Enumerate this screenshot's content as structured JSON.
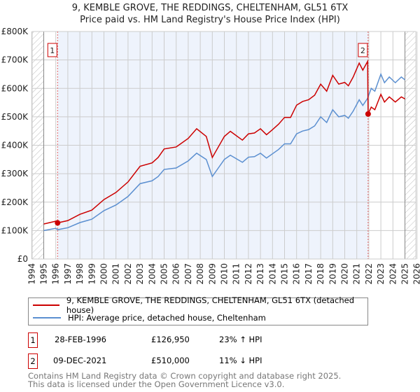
{
  "title": "9, KEMBLE GROVE, THE REDDINGS, CHELTENHAM, GL51 6TX",
  "subtitle": "Price paid vs. HM Land Registry's House Price Index (HPI)",
  "chart_data": {
    "type": "line",
    "title": "9, KEMBLE GROVE, THE REDDINGS, CHELTENHAM, GL51 6TX",
    "subtitle": "Price paid vs. HM Land Registry's House Price Index (HPI)",
    "xlim": [
      1994,
      2026
    ],
    "ylim": [
      0,
      800000
    ],
    "x_ticks": [
      "1994",
      "1995",
      "1996",
      "1997",
      "1998",
      "1999",
      "2000",
      "2001",
      "2002",
      "2003",
      "2004",
      "2005",
      "2006",
      "2007",
      "2008",
      "2009",
      "2010",
      "2011",
      "2012",
      "2013",
      "2014",
      "2015",
      "2016",
      "2017",
      "2018",
      "2019",
      "2020",
      "2021",
      "2022",
      "2023",
      "2024",
      "2025",
      "2026"
    ],
    "y_ticks": [
      "£0",
      "£100K",
      "£200K",
      "£300K",
      "£400K",
      "£500K",
      "£600K",
      "£700K",
      "£800K"
    ],
    "grid": true,
    "series": [
      {
        "name": "9, KEMBLE GROVE, THE REDDINGS, CHELTENHAM, GL51 6TX (detached house)",
        "color": "#cc0000",
        "x": [
          1995,
          1996,
          1996.15,
          1997,
          1998,
          1999,
          2000,
          2001,
          2002,
          2003,
          2004,
          2004.5,
          2005,
          2006,
          2007,
          2007.7,
          2008.5,
          2009,
          2009.5,
          2010,
          2010.5,
          2011.5,
          2012,
          2012.5,
          2013,
          2013.5,
          2014,
          2014.5,
          2015,
          2015.5,
          2016,
          2016.5,
          2017,
          2017.5,
          2018,
          2018.5,
          2019,
          2019.5,
          2020,
          2020.3,
          2020.7,
          2021.2,
          2021.5,
          2021.9,
          2021.94,
          2022.2,
          2022.5,
          2023,
          2023.3,
          2023.7,
          2024.2,
          2024.7,
          2025
        ],
        "y": [
          123000,
          133000,
          127000,
          135000,
          157000,
          172000,
          209000,
          234000,
          271000,
          326000,
          338000,
          357000,
          387000,
          394000,
          424000,
          458000,
          431000,
          357000,
          394000,
          431000,
          449000,
          418000,
          440000,
          443000,
          458000,
          437000,
          455000,
          474000,
          498000,
          498000,
          541000,
          554000,
          560000,
          576000,
          615000,
          590000,
          646000,
          615000,
          621000,
          609000,
          640000,
          689000,
          664000,
          695000,
          510000,
          534000,
          525000,
          579000,
          552000,
          570000,
          552000,
          570000,
          563000
        ]
      },
      {
        "name": "HPI: Average price, detached house, Cheltenham",
        "color": "#5b8fd0",
        "x": [
          1995,
          1996,
          1996.15,
          1997,
          1998,
          1999,
          2000,
          2001,
          2002,
          2003,
          2004,
          2004.5,
          2005,
          2006,
          2007,
          2007.7,
          2008.5,
          2009,
          2009.5,
          2010,
          2010.5,
          2011.5,
          2012,
          2012.5,
          2013,
          2013.5,
          2014,
          2014.5,
          2015,
          2015.5,
          2016,
          2016.5,
          2017,
          2017.5,
          2018,
          2018.5,
          2019,
          2019.5,
          2020,
          2020.3,
          2020.7,
          2021.2,
          2021.5,
          2021.9,
          2022.2,
          2022.5,
          2023,
          2023.3,
          2023.7,
          2024.2,
          2024.7,
          2025
        ],
        "y": [
          100000,
          108000,
          103000,
          110000,
          128000,
          140000,
          170000,
          190000,
          220000,
          265000,
          275000,
          290000,
          315000,
          320000,
          345000,
          372000,
          350000,
          290000,
          320000,
          350000,
          365000,
          340000,
          358000,
          360000,
          372000,
          355000,
          370000,
          385000,
          405000,
          405000,
          440000,
          450000,
          455000,
          468000,
          500000,
          480000,
          525000,
          500000,
          505000,
          495000,
          520000,
          560000,
          540000,
          565000,
          600000,
          590000,
          650000,
          620000,
          640000,
          620000,
          640000,
          630000
        ]
      }
    ],
    "annotations": [
      {
        "label": "1",
        "x": 1996.15,
        "y": 126950
      },
      {
        "label": "2",
        "x": 2021.94,
        "y": 510000
      }
    ]
  },
  "legend": [
    {
      "label": "9, KEMBLE GROVE, THE REDDINGS, CHELTENHAM, GL51 6TX (detached house)",
      "color": "#cc0000"
    },
    {
      "label": "HPI: Average price, detached house, Cheltenham",
      "color": "#5b8fd0"
    }
  ],
  "transactions": [
    {
      "num": "1",
      "date": "28-FEB-1996",
      "price": "£126,950",
      "hpi": "23% ↑ HPI"
    },
    {
      "num": "2",
      "date": "09-DEC-2021",
      "price": "£510,000",
      "hpi": "11% ↓ HPI"
    }
  ],
  "footer": [
    "Contains HM Land Registry data © Crown copyright and database right 2025.",
    "This data is licensed under the Open Government Licence v3.0."
  ]
}
